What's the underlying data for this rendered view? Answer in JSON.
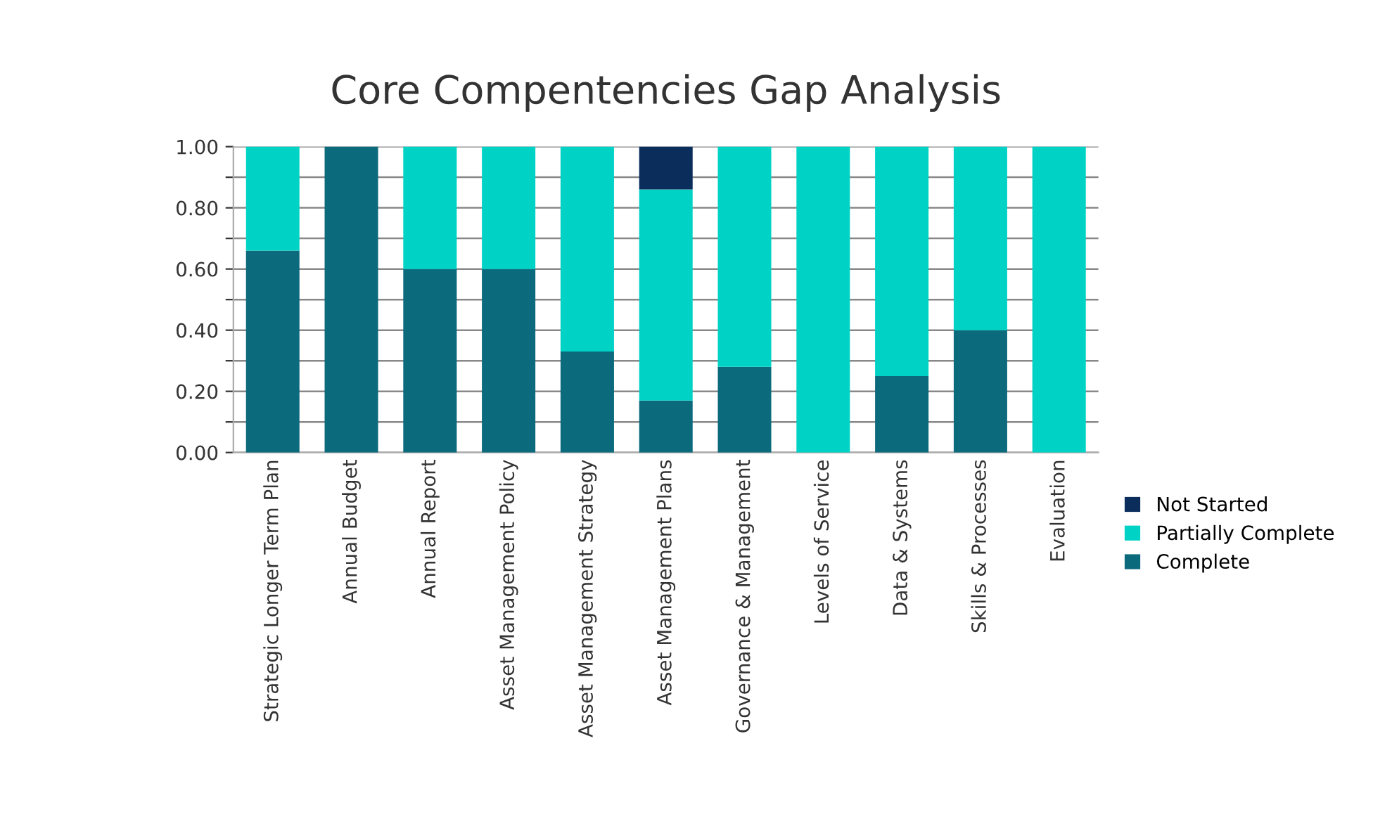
{
  "chart_data": {
    "type": "bar",
    "stacked": true,
    "title": "Core Compentencies Gap Analysis",
    "categories": [
      "Strategic Longer Term Plan",
      "Annual Budget",
      "Annual Report",
      "Asset Management Policy",
      "Asset Management Strategy",
      "Asset Management Plans",
      "Governance & Management",
      "Levels of Service",
      "Data & Systems",
      "Skills & Processes",
      "Evaluation"
    ],
    "series": [
      {
        "name": "Complete",
        "color": "#0b6a7c",
        "values": [
          0.66,
          1.0,
          0.6,
          0.6,
          0.33,
          0.17,
          0.28,
          0,
          0.25,
          0.4,
          0
        ]
      },
      {
        "name": "Partially Complete",
        "color": "#00d3c6",
        "values": [
          0.34,
          0,
          0.4,
          0.4,
          0.67,
          0.69,
          0.72,
          1.0,
          0.75,
          0.6,
          1.0
        ]
      },
      {
        "name": "Not Started",
        "color": "#0a2d5c",
        "values": [
          0,
          0,
          0,
          0,
          0,
          0.14,
          0,
          0,
          0,
          0,
          0
        ]
      }
    ],
    "ylim": [
      0,
      1.0
    ],
    "yticks": [
      {
        "value": 0,
        "label": "0.00"
      },
      {
        "value": 0.1,
        "label": null
      },
      {
        "value": 0.2,
        "label": "0.20"
      },
      {
        "value": 0.3,
        "label": null
      },
      {
        "value": 0.4,
        "label": "0.40"
      },
      {
        "value": 0.5,
        "label": null
      },
      {
        "value": 0.6,
        "label": "0.60"
      },
      {
        "value": 0.7,
        "label": null
      },
      {
        "value": 0.8,
        "label": "0.80"
      },
      {
        "value": 0.9,
        "label": null
      },
      {
        "value": 1.0,
        "label": "1.00"
      }
    ],
    "grid": "y",
    "legend": "right"
  }
}
